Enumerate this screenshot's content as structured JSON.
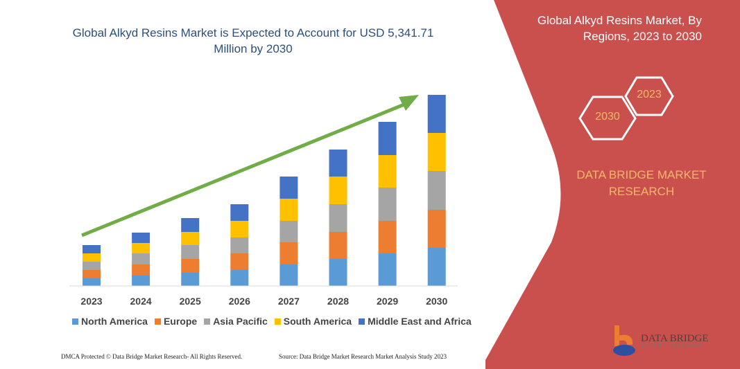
{
  "chart_data": {
    "type": "bar",
    "stacked": true,
    "title": "Global Alkyd Resins Market is Expected to Account for USD 5,341.71 Million by 2030",
    "categories": [
      "2023",
      "2024",
      "2025",
      "2026",
      "2027",
      "2028",
      "2029",
      "2030"
    ],
    "series": [
      {
        "name": "North America",
        "color": "#5B9BD5",
        "values": [
          11,
          15,
          19,
          23,
          31,
          39,
          47,
          55
        ]
      },
      {
        "name": "Europe",
        "color": "#ED7D31",
        "values": [
          12,
          16,
          20,
          24,
          32,
          39,
          47,
          55
        ]
      },
      {
        "name": "Asia Pacific",
        "color": "#A5A5A5",
        "values": [
          12,
          16,
          20,
          23,
          31,
          40,
          48,
          56
        ]
      },
      {
        "name": "South America",
        "color": "#FFC000",
        "values": [
          12,
          15,
          19,
          24,
          32,
          40,
          47,
          55
        ]
      },
      {
        "name": "Middle East and Africa",
        "color": "#4472C4",
        "values": [
          12,
          15,
          20,
          24,
          32,
          39,
          48,
          55
        ]
      }
    ],
    "xlabel": "",
    "ylabel": "",
    "y_axis_shown": false,
    "grid": false,
    "legend": "bottom",
    "trend_arrow_color": "#70AD47"
  },
  "panel": {
    "title": "Global Alkyd Resins Market, By Regions, 2023 to 2030",
    "hex_2023": "2023",
    "hex_2030": "2030",
    "brand": "DATA BRIDGE MARKET RESEARCH",
    "color": "#C9504C",
    "logo_text": "DATA BRIDGE",
    "logo_sub": "MARKET RESEARCH"
  },
  "footer": {
    "left": "DMCA Protected © Data Bridge Market Research-  All Rights Reserved.",
    "right": "Source: Data Bridge Market Research  Market Analysis Study 2023"
  }
}
